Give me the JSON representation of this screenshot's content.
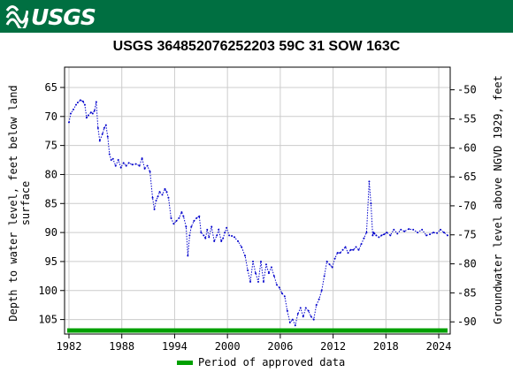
{
  "header": {
    "logo_text": "USGS",
    "color": "#006f41"
  },
  "chart_data": {
    "type": "line",
    "title": "USGS 364852076252203 59C 31 SOW 163C",
    "ylabel_left": "Depth to water level, feet below land surface",
    "ylabel_left_lines": [
      "Depth to water level, feet below land",
      "surface"
    ],
    "ylabel_right": "Groundwater level above NGVD 1929, feet",
    "xlim": [
      1981.5,
      2025.3
    ],
    "ylim_left": [
      107.5,
      61.5
    ],
    "ylim_right": [
      -92.1,
      -46.1
    ],
    "x_ticks": [
      1982,
      1988,
      1994,
      2000,
      2006,
      2012,
      2018,
      2024
    ],
    "y_ticks_left": [
      65,
      70,
      75,
      80,
      85,
      90,
      95,
      100,
      105
    ],
    "y_ticks_right": [
      -50,
      -55,
      -60,
      -65,
      -70,
      -75,
      -80,
      -85,
      -90
    ],
    "grid": true,
    "series": [
      {
        "color": "#0000cc",
        "style": "dotted",
        "x": [
          1982.0,
          1982.2,
          1982.5,
          1982.8,
          1983.0,
          1983.3,
          1983.6,
          1983.8,
          1984.0,
          1984.2,
          1984.5,
          1984.7,
          1984.9,
          1985.1,
          1985.3,
          1985.5,
          1985.8,
          1986.0,
          1986.2,
          1986.4,
          1986.6,
          1986.8,
          1987.0,
          1987.3,
          1987.6,
          1987.9,
          1988.2,
          1988.5,
          1988.8,
          1989.2,
          1989.6,
          1990.0,
          1990.3,
          1990.6,
          1990.9,
          1991.2,
          1991.5,
          1991.7,
          1991.9,
          1992.1,
          1992.3,
          1992.6,
          1992.9,
          1993.1,
          1993.3,
          1993.6,
          1993.9,
          1994.2,
          1994.5,
          1994.8,
          1995.0,
          1995.3,
          1995.5,
          1995.7,
          1995.9,
          1996.2,
          1996.5,
          1996.8,
          1997.0,
          1997.3,
          1997.5,
          1997.7,
          1997.9,
          1998.2,
          1998.5,
          1998.8,
          1999.0,
          1999.3,
          1999.5,
          1999.7,
          1999.9,
          2000.2,
          2000.5,
          2000.8,
          2001.2,
          2001.6,
          2002.0,
          2002.3,
          2002.6,
          2002.9,
          2003.2,
          2003.5,
          2003.8,
          2004.1,
          2004.4,
          2004.7,
          2005.0,
          2005.3,
          2005.6,
          2005.9,
          2006.2,
          2006.5,
          2006.8,
          2007.1,
          2007.4,
          2007.7,
          2008.0,
          2008.3,
          2008.6,
          2008.9,
          2009.2,
          2009.5,
          2009.8,
          2010.1,
          2010.4,
          2010.7,
          2011.0,
          2011.3,
          2011.6,
          2011.9,
          2012.2,
          2012.5,
          2012.8,
          2013.1,
          2013.4,
          2013.7,
          2014.0,
          2014.3,
          2014.6,
          2014.9,
          2015.2,
          2015.5,
          2015.8,
          2016.1,
          2016.3,
          2016.5,
          2016.6,
          2016.7,
          2016.9,
          2017.2,
          2017.5,
          2017.8,
          2018.1,
          2018.5,
          2018.9,
          2019.3,
          2019.7,
          2020.1,
          2020.6,
          2021.1,
          2021.6,
          2022.1,
          2022.6,
          2023.0,
          2023.4,
          2023.8,
          2024.2,
          2024.6,
          2025.0
        ],
        "y": [
          71.0,
          69.5,
          68.8,
          68.0,
          67.6,
          67.2,
          67.4,
          68.0,
          70.2,
          69.8,
          69.3,
          69.5,
          69.0,
          67.5,
          72.0,
          74.2,
          73.0,
          72.0,
          71.5,
          73.5,
          76.5,
          77.5,
          77.3,
          78.5,
          77.5,
          78.8,
          78.0,
          78.5,
          78.0,
          78.3,
          78.2,
          78.5,
          77.2,
          79.0,
          78.5,
          79.5,
          84.0,
          86.0,
          84.5,
          83.8,
          83.0,
          83.5,
          82.5,
          83.0,
          84.0,
          87.5,
          88.5,
          88.0,
          87.5,
          86.5,
          87.2,
          89.0,
          94.0,
          90.5,
          89.0,
          88.0,
          87.5,
          87.2,
          90.0,
          90.5,
          91.0,
          89.5,
          90.8,
          89.0,
          91.5,
          90.5,
          89.5,
          91.5,
          91.0,
          90.0,
          89.2,
          90.5,
          90.6,
          90.8,
          91.5,
          92.5,
          94.0,
          96.5,
          98.5,
          95.0,
          97.0,
          98.5,
          95.0,
          98.5,
          95.5,
          97.0,
          96.0,
          97.5,
          99.0,
          99.5,
          100.5,
          101.0,
          103.5,
          105.5,
          105.0,
          106.0,
          104.0,
          103.0,
          104.5,
          103.0,
          103.5,
          104.5,
          105.0,
          102.5,
          101.5,
          100.0,
          97.5,
          95.0,
          95.5,
          96.0,
          94.5,
          93.5,
          93.5,
          93.0,
          92.5,
          93.5,
          93.0,
          93.0,
          92.5,
          93.0,
          92.0,
          91.0,
          90.0,
          81.2,
          85.0,
          90.5,
          90.0,
          90.2,
          90.5,
          90.8,
          90.5,
          90.3,
          90.0,
          90.5,
          89.5,
          90.2,
          89.5,
          89.8,
          89.4,
          89.5,
          90.0,
          89.5,
          90.5,
          90.3,
          90.0,
          90.1,
          89.5,
          90.0,
          90.5
        ],
        "y_index": 0
      }
    ],
    "approved_period": {
      "x_start": 1981.8,
      "x_end": 2025.0,
      "color": "#00a000"
    },
    "legend": {
      "label": "Period of approved data",
      "position": "bottom-center"
    }
  }
}
